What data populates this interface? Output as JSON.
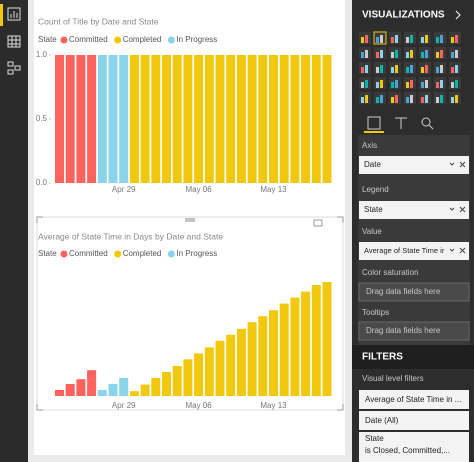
{
  "chart_data": [
    {
      "type": "bar",
      "title": "Count of Title by Date and State",
      "legend_title": "State",
      "categories": [
        null,
        null,
        null,
        null,
        null,
        null,
        "Apr 29",
        null,
        null,
        null,
        null,
        null,
        null,
        "May 06",
        null,
        null,
        null,
        null,
        null,
        null,
        "May 13",
        null,
        null,
        null,
        null,
        null
      ],
      "series": [
        {
          "name": "Committed",
          "color": "#fd625e",
          "values": [
            1,
            1,
            1,
            1,
            null,
            null,
            null,
            null,
            null,
            null,
            null,
            null,
            null,
            null,
            null,
            null,
            null,
            null,
            null,
            null,
            null,
            null,
            null,
            null,
            null,
            null
          ]
        },
        {
          "name": "Completed",
          "color": "#f2c80f",
          "values": [
            null,
            null,
            null,
            null,
            null,
            null,
            null,
            1,
            1,
            1,
            1,
            1,
            1,
            1,
            1,
            1,
            1,
            1,
            1,
            1,
            1,
            1,
            1,
            1,
            1,
            1
          ]
        },
        {
          "name": "In Progress",
          "color": "#8ad4eb",
          "values": [
            null,
            null,
            null,
            null,
            1,
            1,
            1,
            null,
            null,
            null,
            null,
            null,
            null,
            null,
            null,
            null,
            null,
            null,
            null,
            null,
            null,
            null,
            null,
            null,
            null,
            null
          ]
        }
      ],
      "ylim": [
        0,
        1
      ],
      "yticks": [
        {
          "value": 0,
          "label": "0.0"
        },
        {
          "value": 0.5,
          "label": "0.5"
        },
        {
          "value": 1,
          "label": "1.0"
        }
      ]
    },
    {
      "type": "bar",
      "title": "Average of State Time in Days by Date and State",
      "legend_title": "State",
      "categories": [
        null,
        null,
        null,
        null,
        null,
        null,
        "Apr 29",
        null,
        null,
        null,
        null,
        null,
        null,
        "May 06",
        null,
        null,
        null,
        null,
        null,
        null,
        "May 13",
        null,
        null,
        null,
        null,
        null
      ],
      "series": [
        {
          "name": "Committed",
          "color": "#fd625e",
          "values": [
            1,
            2,
            2.8,
            4.3,
            null,
            null,
            null,
            null,
            null,
            null,
            null,
            null,
            null,
            null,
            null,
            null,
            null,
            null,
            null,
            null,
            null,
            null,
            null,
            null,
            null,
            null
          ]
        },
        {
          "name": "Completed",
          "color": "#f2c80f",
          "values": [
            null,
            null,
            null,
            null,
            null,
            null,
            null,
            0.8,
            1.9,
            3,
            4,
            5,
            6.1,
            7.1,
            8.1,
            9.2,
            10.2,
            11.2,
            12.3,
            13.3,
            14.3,
            15.4,
            16.4,
            17.4,
            18.5,
            19
          ]
        },
        {
          "name": "In Progress",
          "color": "#8ad4eb",
          "values": [
            null,
            null,
            null,
            null,
            1,
            2,
            3,
            null,
            null,
            null,
            null,
            null,
            null,
            null,
            null,
            null,
            null,
            null,
            null,
            null,
            null,
            null,
            null,
            null,
            null,
            null
          ]
        }
      ]
    }
  ],
  "panel": {
    "header": "VISUALIZATIONS",
    "axis_label": "Axis",
    "axis_field": "Date",
    "legend_label": "Legend",
    "legend_field": "State",
    "value_label": "Value",
    "value_field": "Average of State Time ir",
    "color_saturation_label": "Color saturation",
    "color_saturation_drop": "Drag data fields here",
    "tooltips_label": "Tooltips",
    "tooltips_drop": "Drag data fields here",
    "filters_header": "FILTERS",
    "visual_filters_label": "Visual level filters",
    "filters": [
      "Average of State Time in ...",
      "Date (All)"
    ],
    "state_filter_name": "State",
    "state_filter_value": "is Closed, Committed,..."
  }
}
